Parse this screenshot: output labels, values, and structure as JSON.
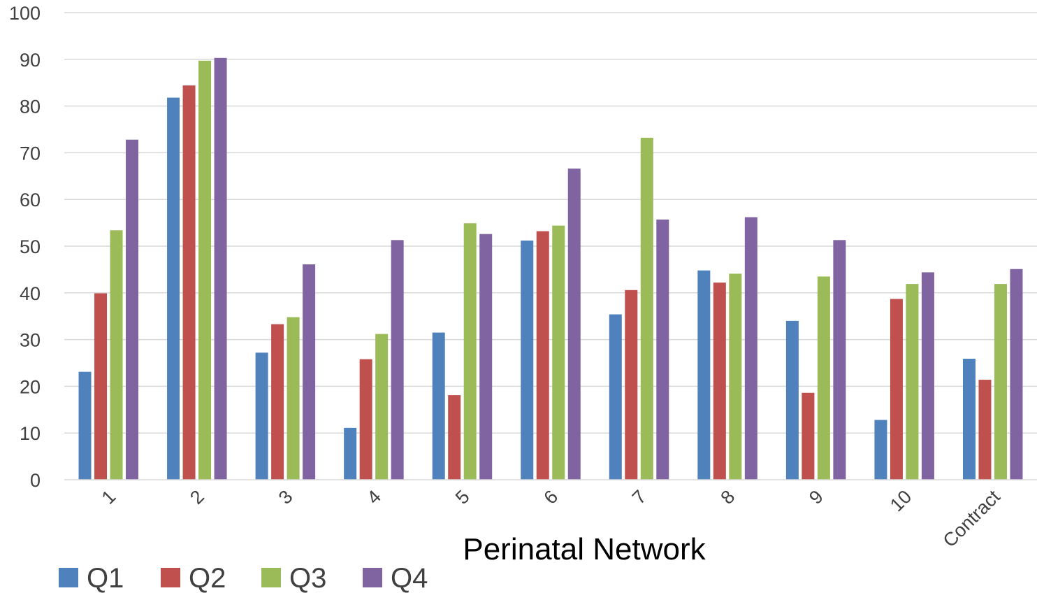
{
  "chart_data": {
    "type": "bar",
    "title": "",
    "xlabel": "Perinatal Network",
    "ylabel": "",
    "ylim": [
      0,
      100
    ],
    "yticks": [
      0,
      10,
      20,
      30,
      40,
      50,
      60,
      70,
      80,
      90,
      100
    ],
    "grid": true,
    "legend_position": "bottom-left",
    "categories": [
      "1",
      "2",
      "3",
      "4",
      "5",
      "6",
      "7",
      "8",
      "9",
      "10",
      "Contract"
    ],
    "series": [
      {
        "name": "Q1",
        "color": "#4F81BD",
        "values": [
          23.1,
          81.8,
          27.2,
          11.1,
          31.5,
          51.2,
          35.4,
          44.8,
          34.0,
          12.8,
          25.9
        ]
      },
      {
        "name": "Q2",
        "color": "#C0504D",
        "values": [
          39.9,
          84.4,
          33.3,
          25.8,
          18.1,
          53.2,
          40.6,
          42.2,
          18.6,
          38.7,
          21.4
        ]
      },
      {
        "name": "Q3",
        "color": "#9BBB59",
        "values": [
          53.4,
          89.7,
          34.8,
          31.2,
          54.9,
          54.4,
          73.2,
          44.1,
          43.5,
          41.9,
          41.9
        ]
      },
      {
        "name": "Q4",
        "color": "#8064A2",
        "values": [
          72.8,
          90.3,
          46.1,
          51.3,
          52.6,
          66.6,
          55.7,
          56.2,
          51.3,
          44.4,
          45.1
        ]
      }
    ]
  }
}
